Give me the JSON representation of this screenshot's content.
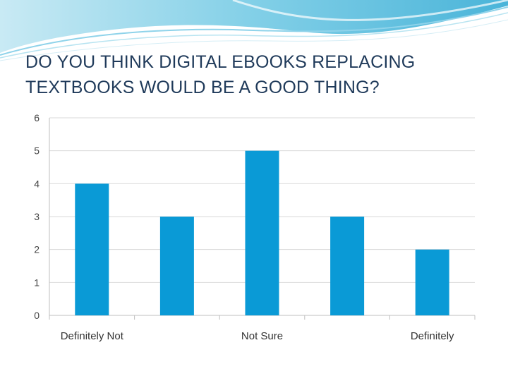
{
  "slide": {
    "title": "DO YOU THINK DIGITAL EBOOKS REPLACING TEXTBOOKS WOULD BE A GOOD THING?"
  },
  "colors": {
    "bar": "#0a9ad6",
    "grid": "#d9d9d9",
    "title": "#1f3a5a",
    "wave": "#39b0d6"
  },
  "chart_data": {
    "type": "bar",
    "title": "",
    "xlabel": "",
    "ylabel": "",
    "categories": [
      "Definitely Not",
      "",
      "Not Sure",
      "",
      "Definitely"
    ],
    "values": [
      4,
      3,
      5,
      3,
      2
    ],
    "ylim": [
      0,
      6
    ],
    "yticks": [
      "0",
      "1",
      "2",
      "3",
      "4",
      "5",
      "6"
    ],
    "grid": true,
    "legend": "none"
  }
}
